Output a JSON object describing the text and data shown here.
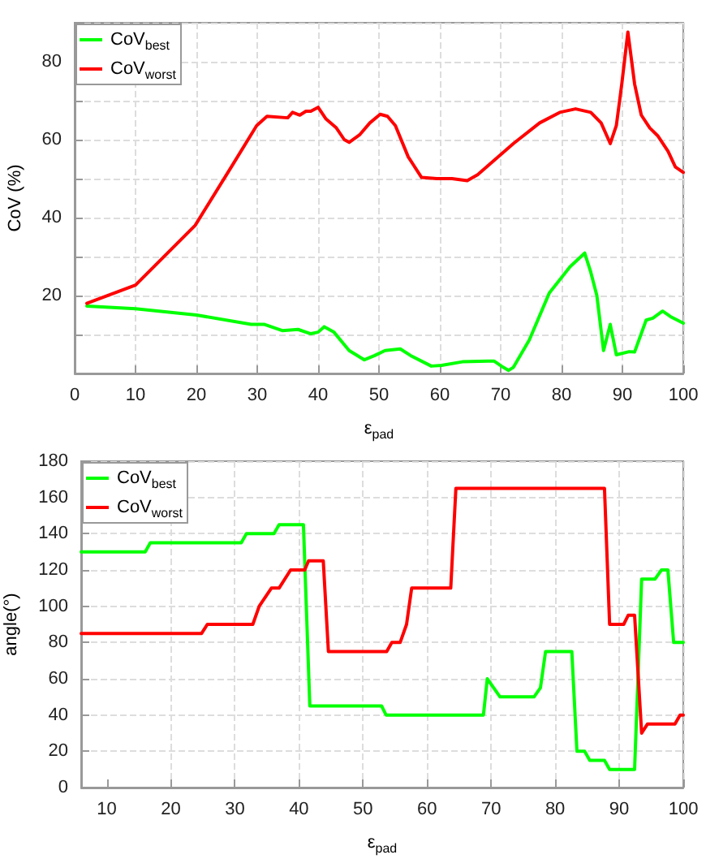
{
  "chart_data": [
    {
      "type": "line",
      "xlabel": "ε$_{pad}$",
      "ylabel": "CoV (%)",
      "xlim": [
        0,
        100
      ],
      "xticks": [
        0,
        10,
        20,
        30,
        40,
        50,
        60,
        70,
        80,
        90,
        100
      ],
      "ylim": [
        0,
        90
      ],
      "yticks": [
        {
          "value": 0,
          "label": null
        },
        {
          "value": 10,
          "label": null
        },
        20,
        {
          "value": 30,
          "label": null
        },
        40,
        {
          "value": 50,
          "label": null
        },
        60,
        {
          "value": 70,
          "label": null
        },
        80,
        {
          "value": 90,
          "label": null
        }
      ],
      "grid": true,
      "legend": "top left",
      "marker": "none",
      "line_style": "solid",
      "series": [
        {
          "name": "CoV$_{best}$",
          "color": "#00ff00",
          "x": [
            2,
            10,
            20,
            29,
            31.2,
            34.1,
            36.7,
            38.8,
            40,
            41,
            42.6,
            45.1,
            47.6,
            49.3,
            51,
            53.5,
            55.2,
            58.6,
            60.3,
            63.7,
            67.9,
            68.9,
            70.4,
            71.3,
            72.1,
            74.7,
            78,
            81.4,
            83.8,
            84.8,
            85.8,
            86.9,
            88,
            89,
            91.1,
            92,
            93.9,
            95,
            96.6,
            97.9,
            100
          ],
          "values": [
            17.3,
            16.6,
            15,
            12.6,
            12.6,
            11,
            11.3,
            10.2,
            10.6,
            12,
            10.6,
            5.9,
            3.5,
            4.6,
            5.9,
            6.3,
            4.6,
            1.9,
            2.1,
            3,
            3.2,
            3.2,
            1.6,
            0.8,
            1.6,
            8.6,
            20.7,
            27.4,
            30.9,
            26,
            20,
            5.9,
            12.6,
            4.8,
            5.6,
            5.5,
            13.7,
            14.2,
            16,
            14.6,
            12.9
          ]
        },
        {
          "name": "CoV$_{worst}$",
          "color": "#ff0000",
          "x": [
            2,
            10,
            19.8,
            25.7,
            29.9,
            31.6,
            35,
            35.8,
            37,
            38,
            38.8,
            40,
            41.3,
            43,
            44.3,
            45.1,
            46.8,
            48.5,
            50.2,
            51.4,
            52.7,
            54.8,
            57,
            59.5,
            62,
            64.5,
            66.2,
            72.1,
            76.4,
            79.7,
            82.3,
            84.8,
            86.5,
            88,
            89,
            89.9,
            90.9,
            92,
            93.1,
            94.5,
            95.8,
            97.5,
            98.7,
            100
          ],
          "values": [
            18,
            22.7,
            38,
            52.9,
            63.6,
            66,
            65.6,
            67,
            66.3,
            67.3,
            67.3,
            68.3,
            65.3,
            63,
            60,
            59.3,
            61.2,
            64.3,
            66.5,
            66,
            63.6,
            55.6,
            50.3,
            50,
            50,
            49.5,
            51,
            59,
            64.3,
            67,
            67.9,
            67,
            64.3,
            59,
            63.6,
            74.3,
            87.6,
            74.3,
            66.3,
            63,
            61,
            57,
            53,
            51.6
          ]
        }
      ]
    },
    {
      "type": "line",
      "xlabel": "ε$_{pad}$",
      "ylabel": "angle(°)",
      "xlim": [
        6,
        100
      ],
      "xticks": [
        10,
        20,
        30,
        40,
        50,
        60,
        70,
        80,
        90,
        100
      ],
      "ylim": [
        0,
        180
      ],
      "yticks": [
        0,
        20,
        40,
        60,
        80,
        100,
        120,
        140,
        160,
        180
      ],
      "grid": true,
      "legend": "top left",
      "marker": "none",
      "line_style": "solid",
      "series": [
        {
          "name": "CoV$_{best}$",
          "color": "#00ff00",
          "x": [
            6,
            16,
            16.8,
            31,
            31.8,
            36.1,
            36.9,
            40.7,
            41.7,
            52.9,
            53.6,
            68.8,
            69.4,
            71.4,
            76.7,
            77.7,
            78.5,
            82.6,
            83.4,
            84.6,
            85.4,
            87.7,
            88.5,
            92.4,
            93.5,
            95.6,
            96.6,
            97.6,
            98.5,
            100
          ],
          "values": [
            130,
            130,
            135,
            135,
            140,
            140,
            145,
            145,
            45,
            45,
            40,
            40,
            60,
            50,
            50,
            55,
            75,
            75,
            20,
            20,
            15,
            15,
            10,
            10,
            115,
            115,
            120,
            120,
            80,
            80
          ]
        },
        {
          "name": "CoV$_{worst}$",
          "color": "#ff0000",
          "x": [
            6,
            24.8,
            25.7,
            32.8,
            33.8,
            35.7,
            36.9,
            38.7,
            40.9,
            41.5,
            43.8,
            44.6,
            53.7,
            54.5,
            55.8,
            56.8,
            57.6,
            63.7,
            64.5,
            87.7,
            88.5,
            90.7,
            91.4,
            92.4,
            93.5,
            94.4,
            98.7,
            99.5,
            100
          ],
          "values": [
            85,
            85,
            90,
            90,
            100,
            110,
            110,
            120,
            120,
            125,
            125,
            75,
            75,
            80,
            80,
            90,
            110,
            110,
            165,
            165,
            90,
            90,
            95,
            95,
            30,
            35,
            35,
            40,
            40
          ]
        }
      ]
    }
  ]
}
